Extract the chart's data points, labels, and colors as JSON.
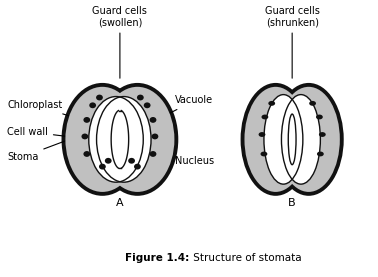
{
  "title_bold": "Figure 1.4:",
  "title_normal": " Structure of stomata",
  "label_A": "A",
  "label_B": "B",
  "label_guard_cells_swollen": "Guard cells\n(swollen)",
  "label_guard_cells_shrunken": "Guard cells\n(shrunken)",
  "label_chloroplast": "Chloroplast",
  "label_cell_wall": "Cell wall",
  "label_stoma": "Stoma",
  "label_vacuole": "Vacuole",
  "label_nucleus": "Nucleus",
  "bg_color": "#ffffff",
  "black": "#111111",
  "gray": "#c0c0c0",
  "dot_color": "#111111"
}
